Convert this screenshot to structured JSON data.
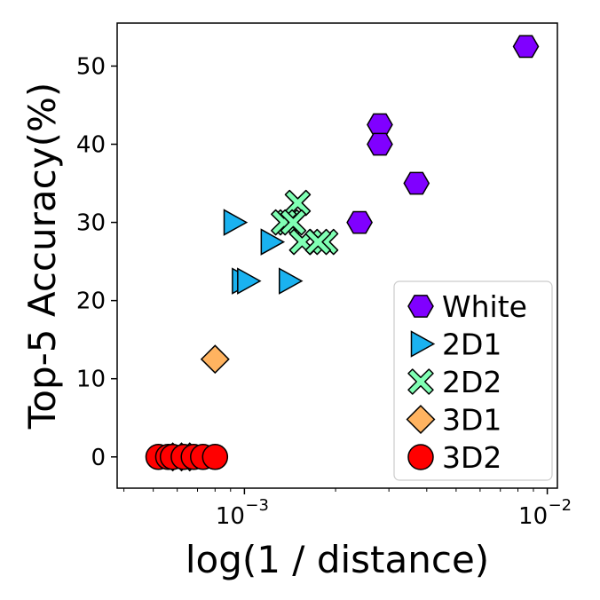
{
  "chart_data": {
    "type": "scatter",
    "title": "",
    "xlabel": "log(1 / distance)",
    "ylabel": "Top-5 Accuracy(%)",
    "xscale": "log",
    "xlim": [
      0.00038,
      0.0108
    ],
    "ylim": [
      -4,
      55.5
    ],
    "x_ticks": [
      {
        "value": 0.001,
        "base": "10",
        "exp": "−3"
      },
      {
        "value": 0.01,
        "base": "10",
        "exp": "−2"
      }
    ],
    "y_ticks": [
      0,
      10,
      20,
      30,
      40,
      50
    ],
    "grid": false,
    "legend_position": "bottom-right",
    "series": [
      {
        "name": "White",
        "marker": "hexagon",
        "color": "#8000ff",
        "points": [
          {
            "x": 0.0085,
            "y": 52.5
          },
          {
            "x": 0.0028,
            "y": 42.5
          },
          {
            "x": 0.0028,
            "y": 40.0
          },
          {
            "x": 0.0037,
            "y": 35.0
          },
          {
            "x": 0.0024,
            "y": 30.0
          }
        ]
      },
      {
        "name": "2D1",
        "marker": "triangle-right",
        "color": "#1ab2f0",
        "points": [
          {
            "x": 0.00092,
            "y": 30.0
          },
          {
            "x": 0.00122,
            "y": 27.5
          },
          {
            "x": 0.00098,
            "y": 22.5
          },
          {
            "x": 0.00102,
            "y": 22.5
          },
          {
            "x": 0.0014,
            "y": 22.5
          }
        ]
      },
      {
        "name": "2D2",
        "marker": "x",
        "color": "#80ffb4",
        "points": [
          {
            "x": 0.0015,
            "y": 32.5
          },
          {
            "x": 0.0014,
            "y": 30.0
          },
          {
            "x": 0.00135,
            "y": 30.0
          },
          {
            "x": 0.00145,
            "y": 30.0
          },
          {
            "x": 0.00155,
            "y": 27.5
          },
          {
            "x": 0.00185,
            "y": 27.5
          },
          {
            "x": 0.00175,
            "y": 27.5
          }
        ]
      },
      {
        "name": "3D1",
        "marker": "diamond",
        "color": "#ffb360",
        "points": [
          {
            "x": 0.0008,
            "y": 12.5
          },
          {
            "x": 0.00058,
            "y": 0.0
          },
          {
            "x": 0.00062,
            "y": 0.0
          },
          {
            "x": 0.00066,
            "y": 0.0
          }
        ]
      },
      {
        "name": "3D2",
        "marker": "circle",
        "color": "#ff0000",
        "points": [
          {
            "x": 0.00052,
            "y": 0.0
          },
          {
            "x": 0.00056,
            "y": 0.0
          },
          {
            "x": 0.00058,
            "y": 0.0
          },
          {
            "x": 0.00063,
            "y": 0.0
          },
          {
            "x": 0.00068,
            "y": 0.0
          },
          {
            "x": 0.00073,
            "y": 0.0
          },
          {
            "x": 0.0008,
            "y": 0.0
          }
        ]
      }
    ]
  }
}
